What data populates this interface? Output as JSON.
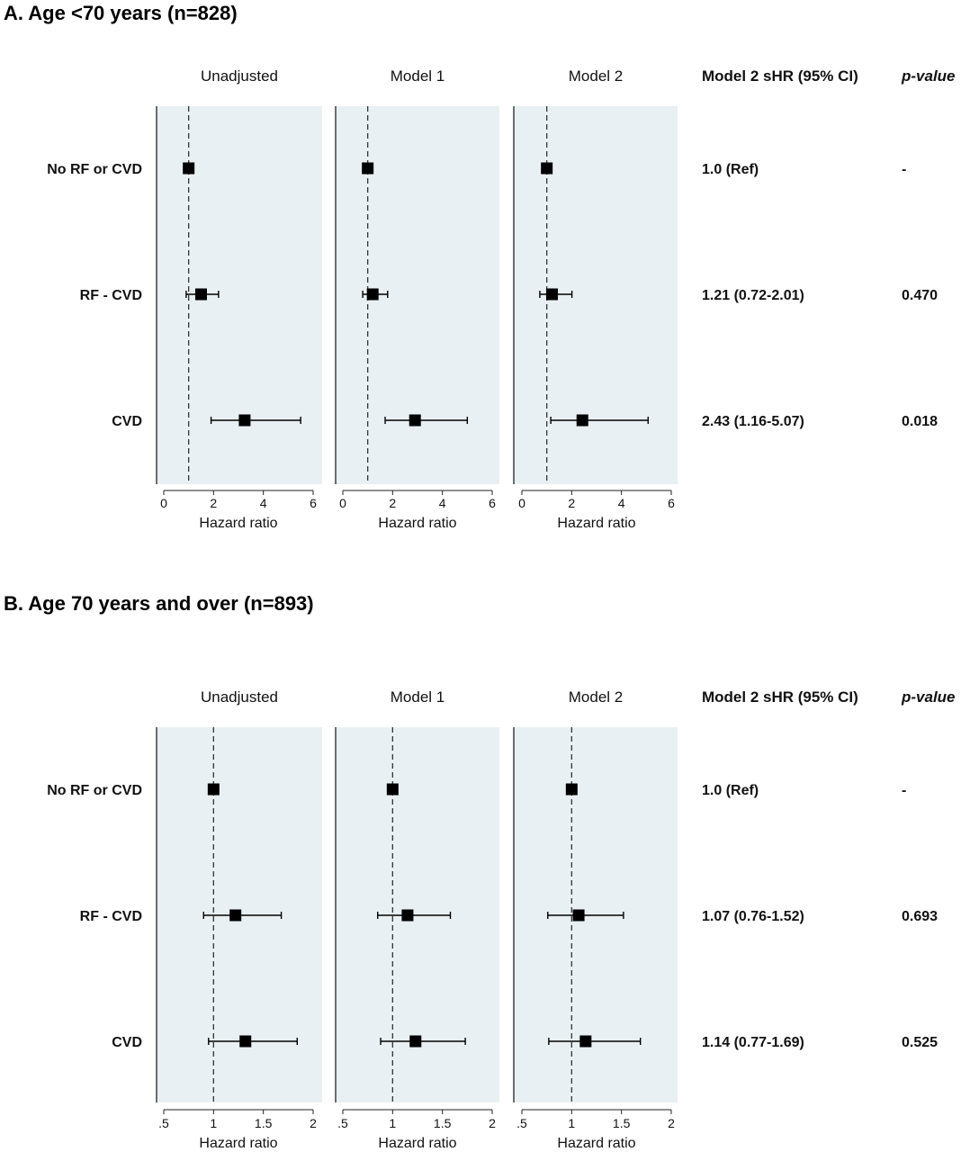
{
  "sections": [
    {
      "title": "A. Age <70 years (n=828)",
      "panel_titles": [
        "Unadjusted",
        "Model 1",
        "Model 2"
      ],
      "table_headers": {
        "estimate": "Model 2 sHR (95% CI)",
        "pvalue": "p-value"
      },
      "rows": [
        {
          "label": "No RF or CVD",
          "estimate": "1.0 (Ref)",
          "pvalue": "-"
        },
        {
          "label": "RF - CVD",
          "estimate": "1.21 (0.72-2.01)",
          "pvalue": "0.470"
        },
        {
          "label": "CVD",
          "estimate": "2.43 (1.16-5.07)",
          "pvalue": "0.018"
        }
      ],
      "xlabel": "Hazard ratio",
      "xticks": [
        0,
        2,
        4,
        6
      ],
      "xtick_labels": [
        "0",
        "2",
        "4",
        "6"
      ]
    },
    {
      "title": "B. Age 70 years and over (n=893)",
      "panel_titles": [
        "Unadjusted",
        "Model 1",
        "Model 2"
      ],
      "table_headers": {
        "estimate": "Model 2 sHR (95% CI)",
        "pvalue": "p-value"
      },
      "rows": [
        {
          "label": "No RF or CVD",
          "estimate": "1.0 (Ref)",
          "pvalue": "-"
        },
        {
          "label": "RF - CVD",
          "estimate": "1.07 (0.76-1.52)",
          "pvalue": "0.693"
        },
        {
          "label": "CVD",
          "estimate": "1.14 (0.77-1.69)",
          "pvalue": "0.525"
        }
      ],
      "xlabel": "Hazard ratio",
      "xticks": [
        0.5,
        1,
        1.5,
        2
      ],
      "xtick_labels": [
        ".5",
        "1",
        "1.5",
        "2"
      ]
    }
  ],
  "chart_data": [
    {
      "type": "forest",
      "title": "A. Age <70 years (n=828)",
      "xlabel": "Hazard ratio",
      "xlim": [
        -0.3,
        6.2
      ],
      "reference_line": 1,
      "categories": [
        "No RF or CVD",
        "RF - CVD",
        "CVD"
      ],
      "series": [
        {
          "name": "Unadjusted",
          "values": [
            1.0,
            1.5,
            3.25
          ],
          "lower": [
            1.0,
            0.9,
            1.9
          ],
          "upper": [
            1.0,
            2.2,
            5.5
          ]
        },
        {
          "name": "Model 1",
          "values": [
            1.0,
            1.2,
            2.9
          ],
          "lower": [
            1.0,
            0.8,
            1.7
          ],
          "upper": [
            1.0,
            1.8,
            5.0
          ]
        },
        {
          "name": "Model 2",
          "values": [
            1.0,
            1.21,
            2.43
          ],
          "lower": [
            1.0,
            0.72,
            1.16
          ],
          "upper": [
            1.0,
            2.01,
            5.07
          ]
        }
      ],
      "background": "#e9f0f3"
    },
    {
      "type": "forest",
      "title": "B. Age 70 years and over (n=893)",
      "xlabel": "Hazard ratio",
      "xlim": [
        0.45,
        2.05
      ],
      "reference_line": 1,
      "categories": [
        "No RF or CVD",
        "RF - CVD",
        "CVD"
      ],
      "series": [
        {
          "name": "Unadjusted",
          "values": [
            1.0,
            1.22,
            1.32
          ],
          "lower": [
            1.0,
            0.9,
            0.95
          ],
          "upper": [
            1.0,
            1.68,
            1.84
          ]
        },
        {
          "name": "Model 1",
          "values": [
            1.0,
            1.15,
            1.23
          ],
          "lower": [
            1.0,
            0.85,
            0.88
          ],
          "upper": [
            1.0,
            1.58,
            1.73
          ]
        },
        {
          "name": "Model 2",
          "values": [
            1.0,
            1.07,
            1.14
          ],
          "lower": [
            1.0,
            0.76,
            0.77
          ],
          "upper": [
            1.0,
            1.52,
            1.69
          ]
        }
      ],
      "background": "#e9f0f3"
    }
  ]
}
